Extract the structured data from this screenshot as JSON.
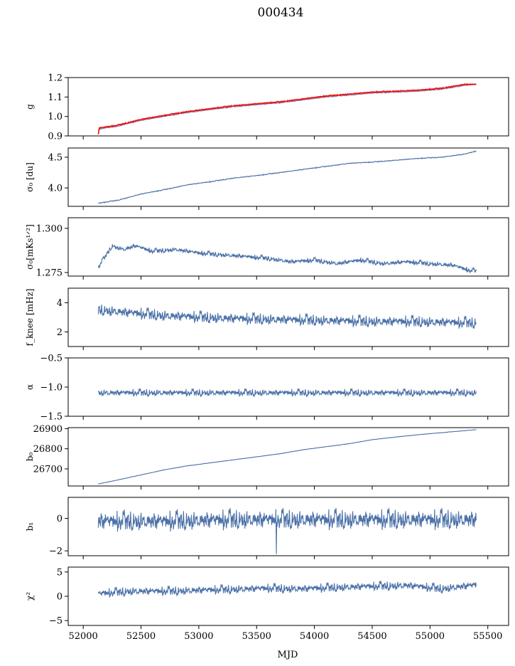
{
  "figure_title": "000434",
  "chart_data": [
    {
      "type": "line",
      "name": "g",
      "ylabel": "g",
      "ylim": [
        0.9,
        1.2
      ],
      "yticks": [
        0.9,
        1.0,
        1.1,
        1.2
      ],
      "ytick_labels": [
        "0.9",
        "1.0",
        "1.1",
        "1.2"
      ],
      "series": [
        {
          "name": "model",
          "color": "#8a6fa0",
          "x": [
            52130,
            52300,
            52500,
            52700,
            52900,
            53100,
            53300,
            53500,
            53700,
            53900,
            54100,
            54300,
            54500,
            54700,
            54900,
            55100,
            55300,
            55400
          ],
          "values": [
            0.935,
            0.95,
            0.98,
            1.0,
            1.02,
            1.035,
            1.05,
            1.06,
            1.07,
            1.085,
            1.1,
            1.11,
            1.12,
            1.125,
            1.13,
            1.14,
            1.16,
            1.165
          ]
        },
        {
          "name": "data",
          "color": "#e8120f",
          "x": [
            52130,
            52300,
            52500,
            52700,
            52900,
            53100,
            53300,
            53500,
            53700,
            53900,
            54100,
            54300,
            54500,
            54700,
            54900,
            55100,
            55300,
            55400
          ],
          "values": [
            0.94,
            0.955,
            0.985,
            1.005,
            1.025,
            1.04,
            1.055,
            1.065,
            1.075,
            1.09,
            1.105,
            1.115,
            1.125,
            1.13,
            1.135,
            1.145,
            1.165,
            1.165
          ]
        }
      ]
    },
    {
      "type": "line",
      "name": "sigma0-du",
      "ylabel": "σ₀ [du]",
      "ylim": [
        3.7,
        4.65
      ],
      "yticks": [
        4.0,
        4.5
      ],
      "ytick_labels": [
        "4.0",
        "4.5"
      ],
      "series": [
        {
          "name": "sigma0",
          "color": "#4c72a8",
          "x": [
            52130,
            52300,
            52500,
            52700,
            52900,
            53100,
            53300,
            53500,
            53700,
            53900,
            54100,
            54300,
            54500,
            54700,
            54900,
            55100,
            55300,
            55400
          ],
          "values": [
            3.75,
            3.8,
            3.9,
            3.97,
            4.05,
            4.1,
            4.16,
            4.2,
            4.25,
            4.3,
            4.35,
            4.4,
            4.42,
            4.45,
            4.48,
            4.5,
            4.55,
            4.6
          ]
        }
      ]
    },
    {
      "type": "line",
      "name": "sigma0-mks",
      "ylabel": "σ₀[mKs¹ᐟ²]",
      "ylim": [
        1.273,
        1.306
      ],
      "yticks": [
        1.275,
        1.3
      ],
      "ytick_labels": [
        "1.275",
        "1.300"
      ],
      "series": [
        {
          "name": "sigma0",
          "color": "#4c72a8",
          "x": [
            52130,
            52250,
            52350,
            52450,
            52600,
            52800,
            53000,
            53200,
            53400,
            53600,
            53800,
            54000,
            54200,
            54400,
            54600,
            54800,
            55000,
            55200,
            55350,
            55400
          ],
          "values": [
            1.278,
            1.29,
            1.288,
            1.29,
            1.287,
            1.288,
            1.286,
            1.285,
            1.284,
            1.283,
            1.281,
            1.282,
            1.28,
            1.282,
            1.28,
            1.281,
            1.28,
            1.279,
            1.276,
            1.276
          ]
        }
      ]
    },
    {
      "type": "line",
      "name": "fknee",
      "ylabel": "f_knee [mHz]",
      "ylim": [
        1.0,
        5.0
      ],
      "yticks": [
        2,
        4
      ],
      "ytick_labels": [
        "2",
        "4"
      ],
      "series": [
        {
          "name": "fknee",
          "color": "#4c72a8",
          "x": [
            52130,
            52400,
            52700,
            53000,
            53300,
            53600,
            53900,
            54200,
            54500,
            54800,
            55100,
            55400
          ],
          "values": [
            3.5,
            3.3,
            3.1,
            3.0,
            2.9,
            2.85,
            2.8,
            2.75,
            2.7,
            2.7,
            2.65,
            2.6
          ]
        }
      ]
    },
    {
      "type": "line",
      "name": "alpha",
      "ylabel": "α",
      "ylim": [
        -1.5,
        -0.5
      ],
      "yticks": [
        -1.5,
        -1.0,
        -0.5
      ],
      "ytick_labels": [
        "−1.5",
        "−1.0",
        "−0.5"
      ],
      "series": [
        {
          "name": "alpha",
          "color": "#4c72a8",
          "x": [
            52130,
            52700,
            53300,
            53900,
            54500,
            55100,
            55400
          ],
          "values": [
            -1.1,
            -1.1,
            -1.1,
            -1.1,
            -1.1,
            -1.1,
            -1.1
          ]
        }
      ]
    },
    {
      "type": "line",
      "name": "b0",
      "ylabel": "b₀",
      "ylim": [
        26615,
        26905
      ],
      "yticks": [
        26700,
        26800,
        26900
      ],
      "ytick_labels": [
        "26700",
        "26800",
        "26900"
      ],
      "series": [
        {
          "name": "b0",
          "color": "#4c72a8",
          "x": [
            52130,
            52300,
            52500,
            52700,
            52900,
            53100,
            53300,
            53500,
            53700,
            53900,
            54100,
            54300,
            54500,
            54700,
            54900,
            55100,
            55300,
            55400
          ],
          "values": [
            26625,
            26645,
            26670,
            26695,
            26715,
            26730,
            26745,
            26760,
            26775,
            26795,
            26810,
            26825,
            26845,
            26858,
            26870,
            26880,
            26890,
            26895
          ]
        }
      ]
    },
    {
      "type": "line",
      "name": "b1",
      "ylabel": "b₁",
      "ylim": [
        -2.3,
        1.3
      ],
      "yticks": [
        -2,
        0
      ],
      "ytick_labels": [
        "−2",
        "0"
      ],
      "series": [
        {
          "name": "b1",
          "color": "#4c72a8",
          "x": [
            52130,
            52700,
            53300,
            53900,
            54500,
            55100,
            55400
          ],
          "values": [
            -0.2,
            -0.2,
            -0.1,
            -0.1,
            -0.1,
            -0.1,
            -0.1
          ]
        }
      ]
    },
    {
      "type": "line",
      "name": "chi2",
      "ylabel": "χ²",
      "ylim": [
        -6.0,
        6.0
      ],
      "yticks": [
        -5,
        0,
        5
      ],
      "ytick_labels": [
        "−5",
        "0",
        "5"
      ],
      "series": [
        {
          "name": "chi2",
          "color": "#4c72a8",
          "x": [
            52130,
            52400,
            52700,
            53000,
            53300,
            53600,
            53900,
            54200,
            54500,
            54800,
            55100,
            55400
          ],
          "values": [
            0.5,
            1.0,
            1.0,
            1.2,
            1.4,
            1.6,
            1.5,
            1.8,
            2.0,
            2.2,
            1.5,
            2.3
          ]
        }
      ]
    }
  ],
  "x_axis": {
    "label": "MJD",
    "xlim": [
      51870,
      55680
    ],
    "ticks": [
      52000,
      52500,
      53000,
      53500,
      54000,
      54500,
      55000,
      55500
    ],
    "tick_labels": [
      "52000",
      "52500",
      "53000",
      "53500",
      "54000",
      "54500",
      "55000",
      "55500"
    ]
  }
}
